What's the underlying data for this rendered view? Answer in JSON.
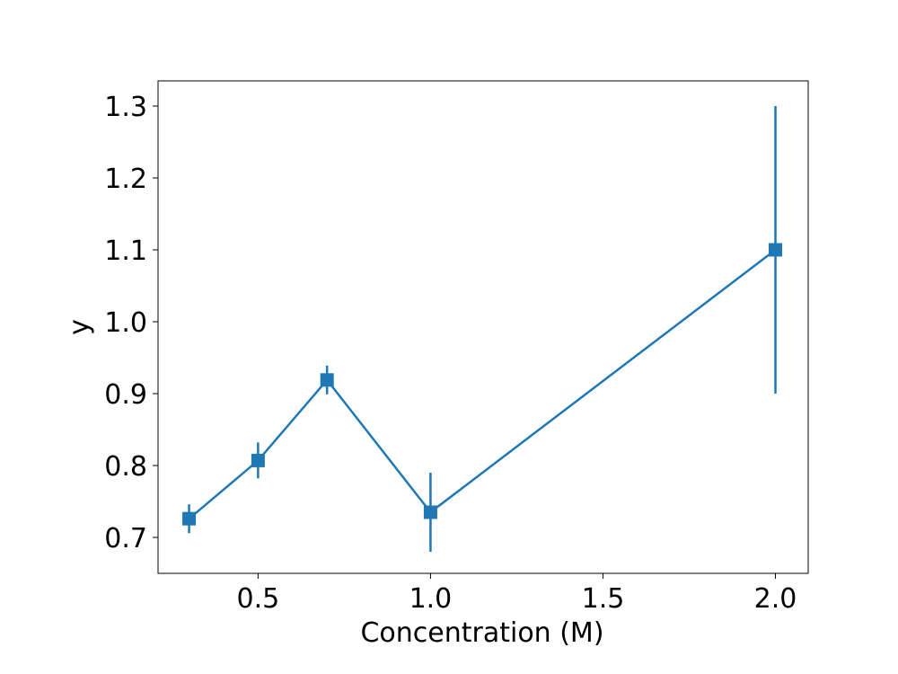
{
  "chart_data": {
    "type": "line",
    "title": "",
    "xlabel": "Concentration (M)",
    "ylabel": "y",
    "xlim": [
      0.21,
      2.095
    ],
    "ylim": [
      0.65,
      1.335
    ],
    "xticks": [
      0.5,
      1.0,
      1.5,
      2.0
    ],
    "xtick_labels": [
      "0.5",
      "1.0",
      "1.5",
      "2.0"
    ],
    "yticks": [
      0.7,
      0.8,
      0.9,
      1.0,
      1.1,
      1.2,
      1.3
    ],
    "ytick_labels": [
      "0.7",
      "0.8",
      "0.9",
      "1.0",
      "1.1",
      "1.2",
      "1.3"
    ],
    "grid": false,
    "marker": "square",
    "color": "#1f77b4",
    "series": [
      {
        "x": [
          0.3,
          0.5,
          0.7,
          1.0,
          2.0
        ],
        "y": [
          0.726,
          0.807,
          0.919,
          0.735,
          1.1
        ],
        "yerr": [
          0.02,
          0.025,
          0.02,
          0.055,
          0.2
        ]
      }
    ]
  }
}
